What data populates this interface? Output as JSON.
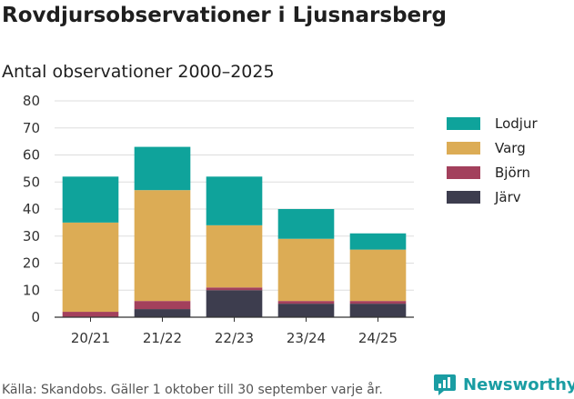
{
  "title": "Rovdjursobservationer i Ljusnarsberg",
  "subtitle": "Antal observationer 2000–2025",
  "footer": "Källa: Skandobs. Gäller 1 oktober till 30 september varje år.",
  "brand": {
    "name": "Newsworthy",
    "icon": "newsworthy-logo-icon",
    "color": "#1a9da3"
  },
  "chart_data": {
    "type": "bar",
    "stacked": true,
    "title": "Antal observationer 2000–2025",
    "xlabel": "",
    "ylabel": "",
    "ylim": [
      0,
      80
    ],
    "yticks": [
      "0",
      "10",
      "20",
      "30",
      "40",
      "50",
      "60",
      "70",
      "80"
    ],
    "categories": [
      "20/21",
      "21/22",
      "22/23",
      "23/24",
      "24/25"
    ],
    "legend_position": "right",
    "series": [
      {
        "name": "Järv",
        "color": "#3d3d4e",
        "values": [
          0,
          3,
          10,
          5,
          5
        ]
      },
      {
        "name": "Björn",
        "color": "#a3405c",
        "values": [
          2,
          3,
          1,
          1,
          1
        ]
      },
      {
        "name": "Varg",
        "color": "#dcac55",
        "values": [
          33,
          41,
          23,
          23,
          19
        ]
      },
      {
        "name": "Lodjur",
        "color": "#0fa39b",
        "values": [
          17,
          16,
          18,
          11,
          6
        ]
      }
    ],
    "legend_order": [
      "Lodjur",
      "Varg",
      "Björn",
      "Järv"
    ]
  }
}
